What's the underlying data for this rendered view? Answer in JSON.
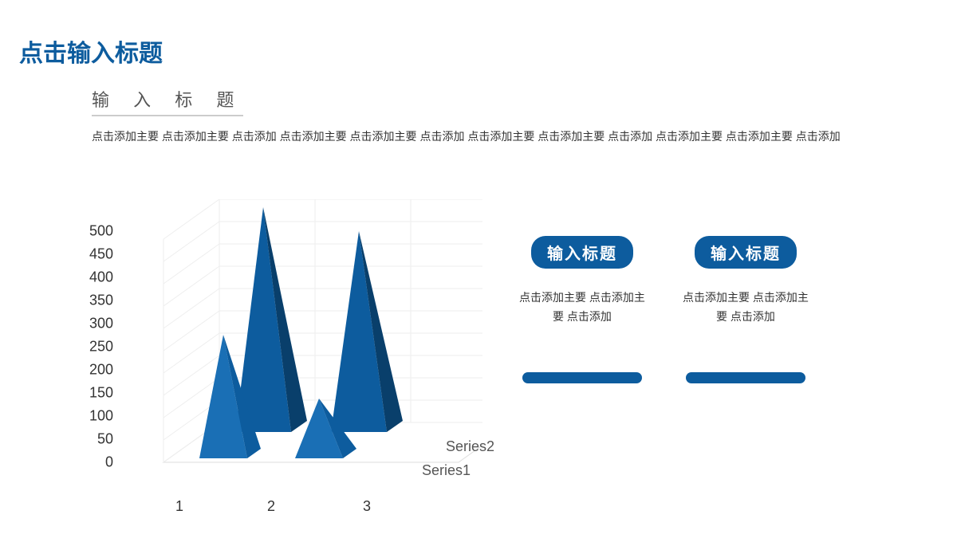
{
  "title": "点击输入标题",
  "subtitle": "输 入 标 题",
  "bodyText": "点击添加主要  点击添加主要  点击添加 点击添加主要  点击添加主要  点击添加 点击添加主要  点击添加主要  点击添加 点击添加主要  点击添加主要  点击添加",
  "colors": {
    "primary": "#0d5c9e",
    "primaryDark": "#093f6b",
    "primaryLight": "#1a6fb5",
    "text": "#333333",
    "subtext": "#555555",
    "grid": "#eeeeee",
    "background": "#ffffff"
  },
  "chart": {
    "type": "3d-pyramid",
    "yAxis": {
      "min": 0,
      "max": 500,
      "step": 50,
      "ticks": [
        0,
        50,
        100,
        150,
        200,
        250,
        300,
        350,
        400,
        450,
        500
      ],
      "fontsize": 18
    },
    "xAxis": {
      "categories": [
        "1",
        "2",
        "3"
      ],
      "fontsize": 18
    },
    "series": [
      {
        "name": "Series1",
        "values": [
          290,
          130,
          0
        ]
      },
      {
        "name": "Series2",
        "values": [
          530,
          480,
          0
        ]
      }
    ],
    "grid_color": "#eeeeee",
    "pyramid_front_color": "#0d5c9e",
    "pyramid_side_color": "#093f6b"
  },
  "infoColumns": [
    {
      "title": "输入标题",
      "text": "点击添加主要  点击添加主要  点击添加"
    },
    {
      "title": "输入标题",
      "text": "点击添加主要  点击添加主要  点击添加"
    }
  ]
}
